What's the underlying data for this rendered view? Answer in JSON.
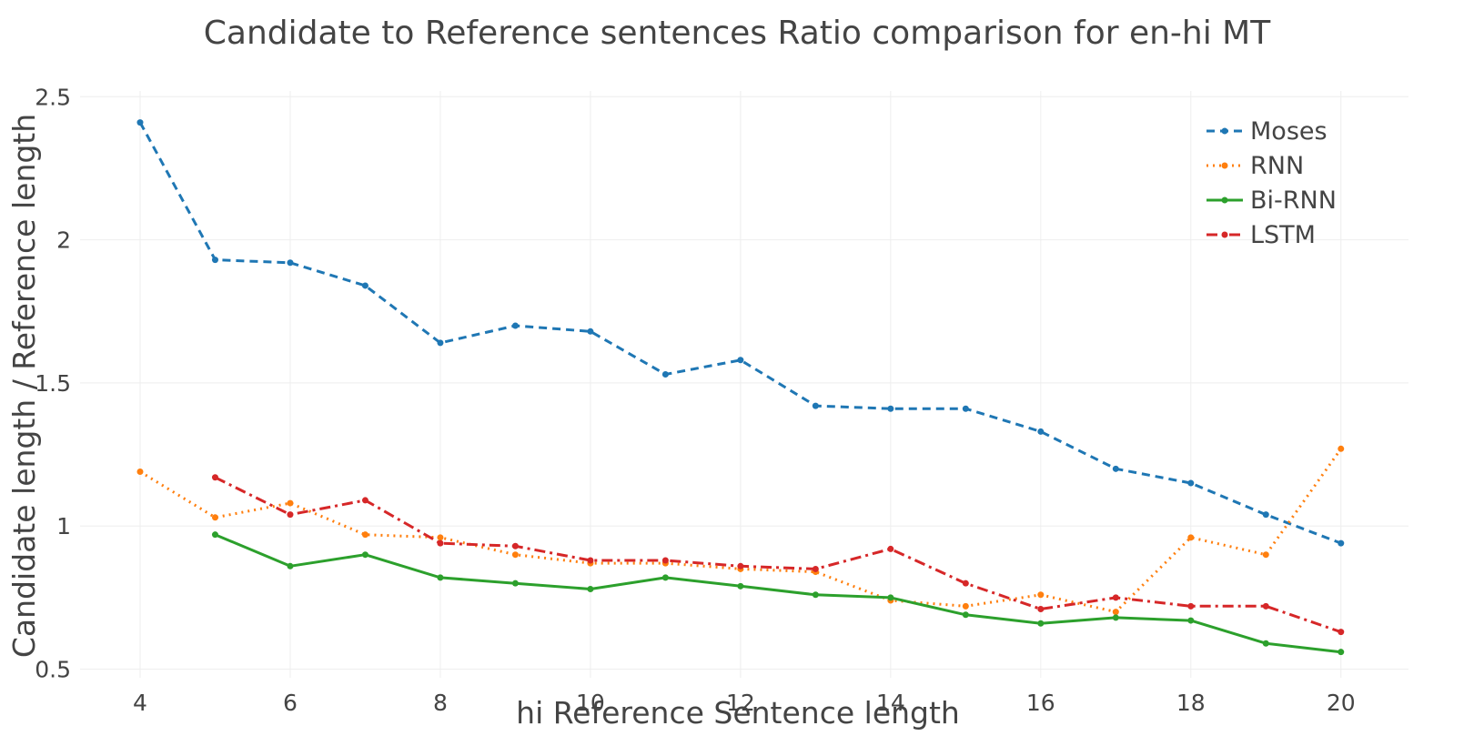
{
  "chart_data": {
    "type": "line",
    "title": "Candidate to Reference sentences Ratio comparison for en-hi MT",
    "xlabel": "hi Reference Sentence length",
    "ylabel": "Candidate length / Reference length",
    "xlim": [
      3.2,
      20.9
    ],
    "ylim": [
      0.47,
      2.52
    ],
    "x_ticks": [
      4,
      6,
      8,
      10,
      12,
      14,
      16,
      18,
      20
    ],
    "y_ticks": [
      0.5,
      1,
      1.5,
      2,
      2.5
    ],
    "grid": true,
    "legend_position": "top-right",
    "series": [
      {
        "name": "Moses",
        "color": "#1f77b4",
        "dash": "dashed",
        "x": [
          4,
          5,
          6,
          7,
          8,
          9,
          10,
          11,
          12,
          13,
          14,
          15,
          16,
          17,
          18,
          19,
          20
        ],
        "values": [
          2.41,
          1.93,
          1.92,
          1.84,
          1.64,
          1.7,
          1.68,
          1.53,
          1.58,
          1.42,
          1.41,
          1.41,
          1.33,
          1.2,
          1.15,
          1.04,
          0.94
        ]
      },
      {
        "name": "RNN",
        "color": "#ff7f0e",
        "dash": "dotted",
        "x": [
          4,
          5,
          6,
          7,
          8,
          9,
          10,
          11,
          12,
          13,
          14,
          15,
          16,
          17,
          18,
          19,
          20
        ],
        "values": [
          1.19,
          1.03,
          1.08,
          0.97,
          0.96,
          0.9,
          0.87,
          0.87,
          0.85,
          0.84,
          0.74,
          0.72,
          0.76,
          0.7,
          0.96,
          0.9,
          1.27
        ]
      },
      {
        "name": "Bi-RNN",
        "color": "#2ca02c",
        "dash": "solid",
        "x": [
          5,
          6,
          7,
          8,
          9,
          10,
          11,
          12,
          13,
          14,
          15,
          16,
          17,
          18,
          19,
          20
        ],
        "values": [
          0.97,
          0.86,
          0.9,
          0.82,
          0.8,
          0.78,
          0.82,
          0.79,
          0.76,
          0.75,
          0.69,
          0.66,
          0.68,
          0.67,
          0.59,
          0.56
        ]
      },
      {
        "name": "LSTM",
        "color": "#d62728",
        "dash": "dashdot",
        "x": [
          5,
          6,
          7,
          8,
          9,
          10,
          11,
          12,
          13,
          14,
          15,
          16,
          17,
          18,
          19,
          20
        ],
        "values": [
          1.17,
          1.04,
          1.09,
          0.94,
          0.93,
          0.88,
          0.88,
          0.86,
          0.85,
          0.92,
          0.8,
          0.71,
          0.75,
          0.72,
          0.72,
          0.63
        ]
      }
    ]
  }
}
